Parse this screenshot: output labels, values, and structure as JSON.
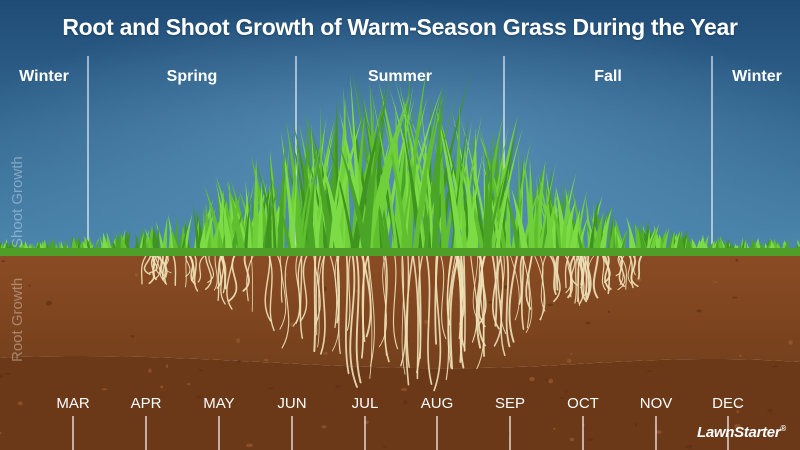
{
  "title": "Root and Shoot Growth of Warm-Season Grass During the Year",
  "seasons": [
    "Winter",
    "Spring",
    "Summer",
    "Fall",
    "Winter"
  ],
  "side_labels": {
    "shoot": "Shoot Growth",
    "root": "Root Growth"
  },
  "months": [
    "MAR",
    "APR",
    "MAY",
    "JUN",
    "JUL",
    "AUG",
    "SEP",
    "OCT",
    "NOV",
    "DEC"
  ],
  "brand": {
    "name": "LawnStarter",
    "mark": "®"
  },
  "colors": {
    "sky_top": "#1f4f7a",
    "sky_bottom": "#4a86ad",
    "grass": "#5fbf2e",
    "soil_top": "#8a4b23",
    "soil_bottom": "#6a3817",
    "roots": "#efe2b8"
  }
}
